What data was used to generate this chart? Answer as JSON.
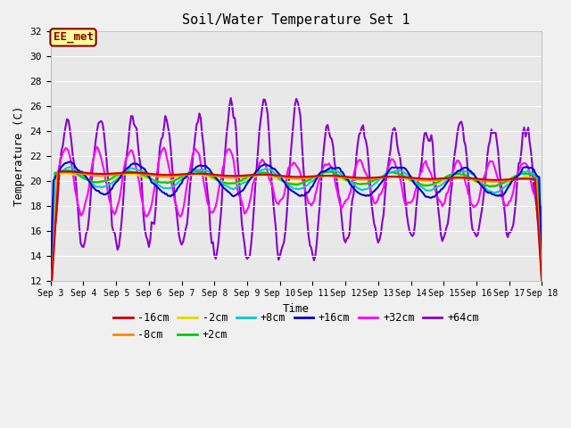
{
  "title": "Soil/Water Temperature Set 1",
  "xlabel": "Time",
  "ylabel": "Temperature (C)",
  "ylim": [
    12,
    32
  ],
  "xlim": [
    0,
    360
  ],
  "fig_bg": "#f0f0f0",
  "plot_bg": "#e8e8e8",
  "annotation_text": "EE_met",
  "annotation_bg": "#ffff99",
  "annotation_border": "#880000",
  "series_order": [
    "-16cm",
    "-8cm",
    "-2cm",
    "+2cm",
    "+8cm",
    "+16cm",
    "+32cm",
    "+64cm"
  ],
  "series": {
    "-16cm": {
      "color": "#cc0000",
      "lw": 1.5
    },
    "-8cm": {
      "color": "#ff8800",
      "lw": 1.5
    },
    "-2cm": {
      "color": "#dddd00",
      "lw": 1.5
    },
    "+2cm": {
      "color": "#00cc00",
      "lw": 1.5
    },
    "+8cm": {
      "color": "#00cccc",
      "lw": 1.5
    },
    "+16cm": {
      "color": "#0000cc",
      "lw": 1.5
    },
    "+32cm": {
      "color": "#ff00ff",
      "lw": 1.5
    },
    "+64cm": {
      "color": "#8800cc",
      "lw": 1.5
    }
  },
  "xtick_labels": [
    "Sep 3",
    "Sep 4",
    "Sep 5",
    "Sep 6",
    "Sep 7",
    "Sep 8",
    "Sep 9",
    "Sep 10",
    "Sep 11",
    "Sep 12",
    "Sep 13",
    "Sep 14",
    "Sep 15",
    "Sep 16",
    "Sep 17",
    "Sep 18"
  ],
  "xtick_positions": [
    0,
    24,
    48,
    72,
    96,
    120,
    144,
    168,
    192,
    216,
    240,
    264,
    288,
    312,
    336,
    360
  ],
  "ytick_labels": [
    "12",
    "14",
    "16",
    "18",
    "20",
    "22",
    "24",
    "26",
    "28",
    "30",
    "32"
  ],
  "ytick_positions": [
    12,
    14,
    16,
    18,
    20,
    22,
    24,
    26,
    28,
    30,
    32
  ]
}
